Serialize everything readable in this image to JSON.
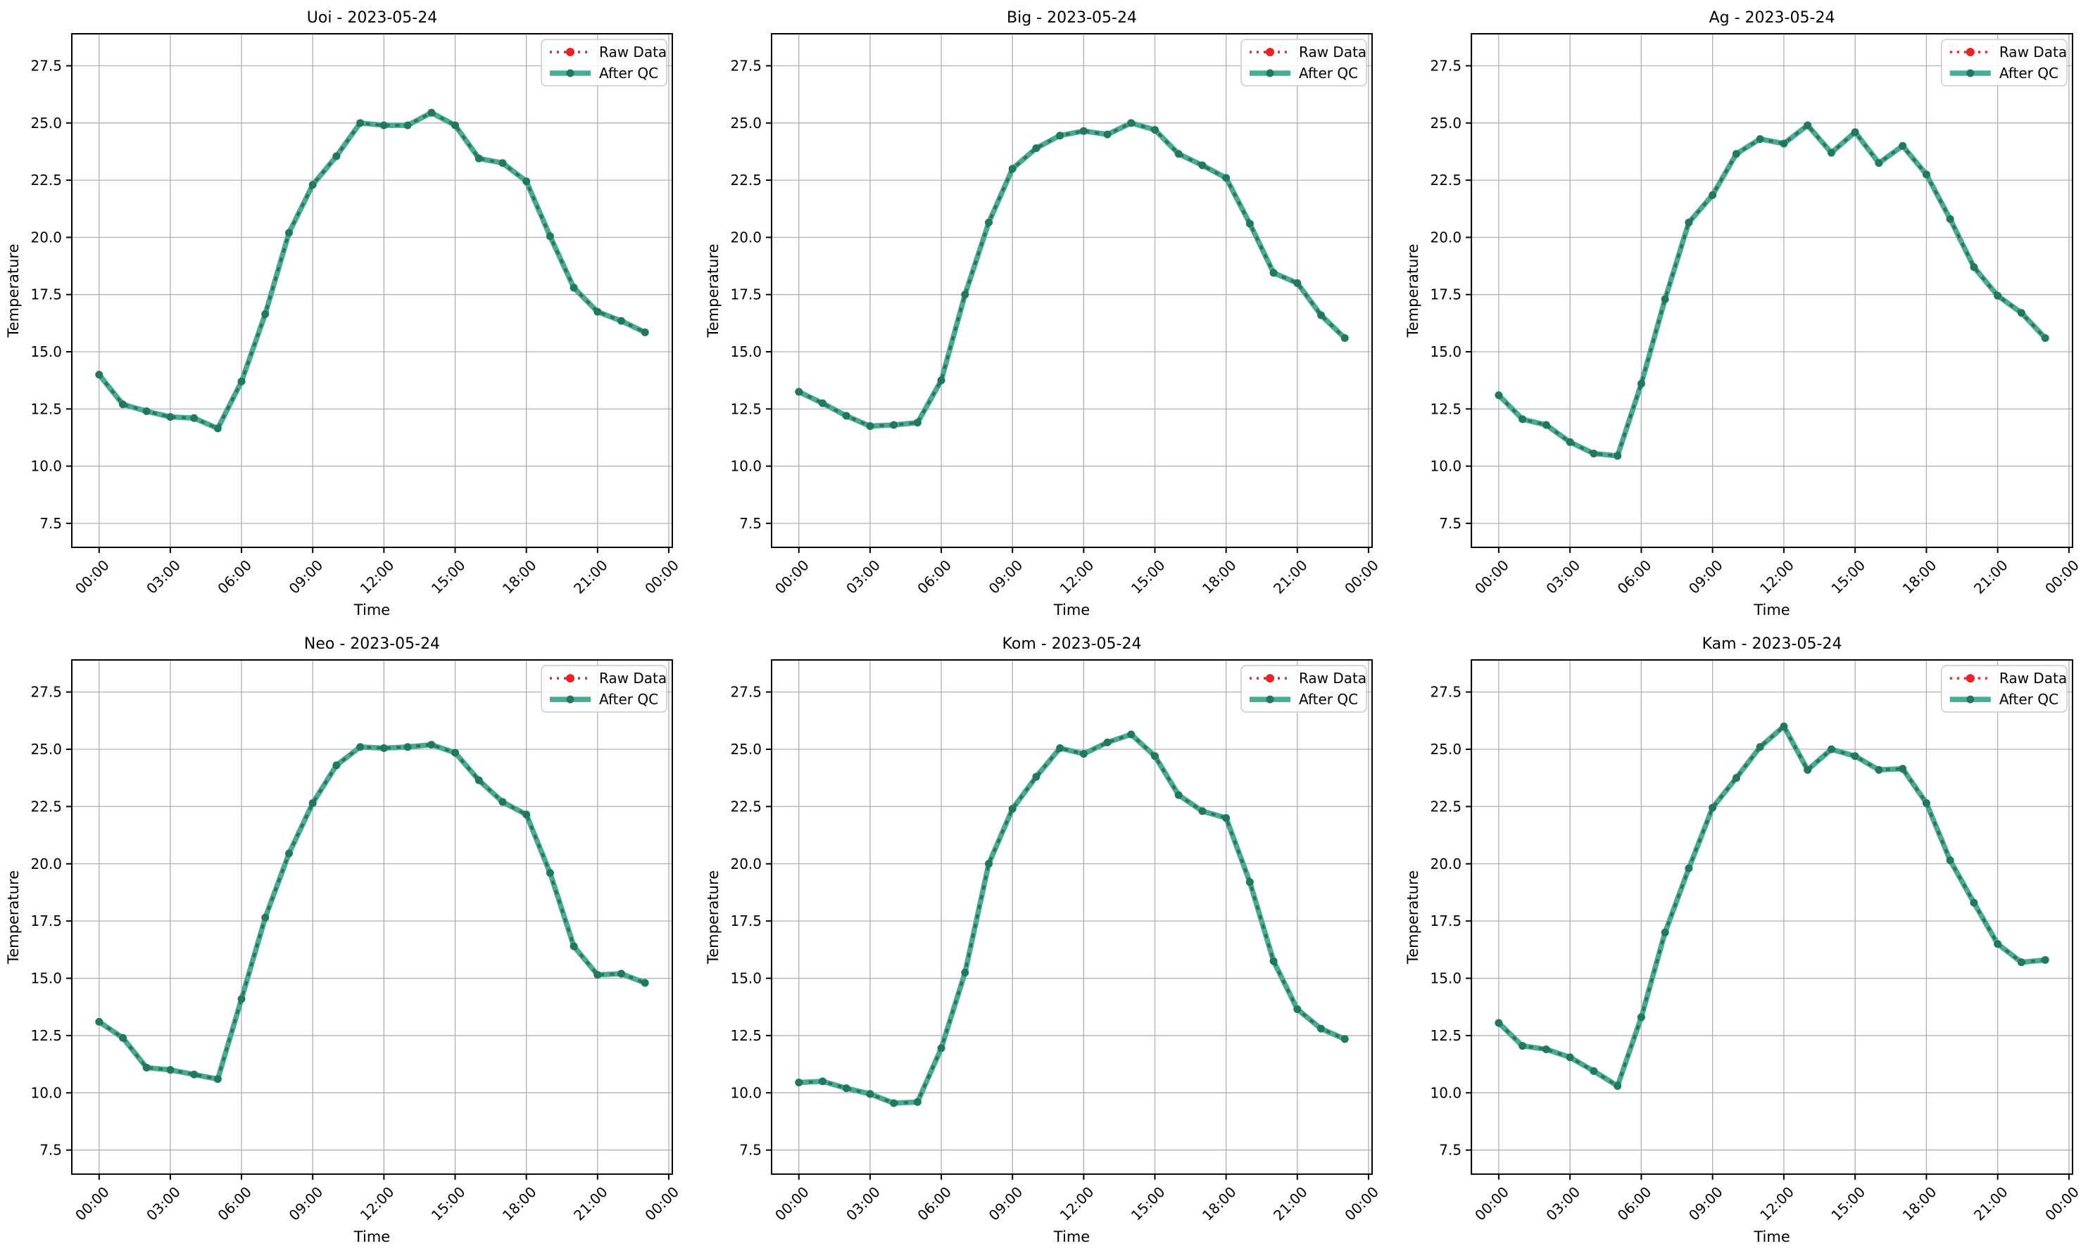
{
  "figure": {
    "date": "2023-05-24",
    "stations": [
      "Uoi",
      "Big",
      "Ag",
      "Neo",
      "Kom",
      "Kam"
    ],
    "layout": {
      "rows": 2,
      "cols": 3
    }
  },
  "style": {
    "background": "#ffffff",
    "grid_color": "#b0b0b0",
    "axis_color": "#000000",
    "text_color": "#000000",
    "qc_line_color": "#45ad92",
    "qc_dash_color": "#366e5e",
    "qc_marker_color": "#20795f",
    "raw_color": "#ed2024",
    "legend_border_color": "#cccccc",
    "legend_bg": "rgba(255,255,255,0.85)"
  },
  "legend": {
    "items": [
      {
        "label": "Raw Data",
        "style": "dotted",
        "color": "#ed2024"
      },
      {
        "label": "After QC",
        "style": "solid",
        "color": "#45ad92"
      }
    ],
    "position": "upper right"
  },
  "axes": {
    "xlabel": "Time",
    "ylabel": "Temperature",
    "grid": true,
    "xlim": [
      -1.15,
      24.15
    ],
    "ylim": [
      6.45,
      28.9
    ],
    "xticks": {
      "positions": [
        0,
        3,
        6,
        9,
        12,
        15,
        18,
        21,
        24
      ],
      "labels": [
        "00:00",
        "03:00",
        "06:00",
        "09:00",
        "12:00",
        "15:00",
        "18:00",
        "21:00",
        "00:00"
      ],
      "rotation": 45
    },
    "yticks": [
      7.5,
      10.0,
      12.5,
      15.0,
      17.5,
      20.0,
      22.5,
      25.0,
      27.5
    ],
    "x_categories": [
      "00:00",
      "01:00",
      "02:00",
      "03:00",
      "04:00",
      "05:00",
      "06:00",
      "07:00",
      "08:00",
      "09:00",
      "10:00",
      "11:00",
      "12:00",
      "13:00",
      "14:00",
      "15:00",
      "16:00",
      "17:00",
      "18:00",
      "19:00",
      "20:00",
      "21:00",
      "22:00",
      "23:00"
    ]
  },
  "chart_data": [
    {
      "type": "line",
      "station": "Uoi",
      "title": "Uoi - 2023-05-24",
      "series": [
        {
          "name": "Raw Data",
          "values": [
            14.0,
            12.7,
            12.4,
            12.15,
            12.1,
            11.65,
            13.7,
            16.65,
            20.2,
            22.3,
            23.55,
            25.0,
            24.9,
            24.9,
            25.45,
            24.9,
            23.45,
            23.25,
            22.45,
            20.05,
            17.8,
            16.75,
            16.35,
            15.85
          ]
        },
        {
          "name": "After QC",
          "values": [
            14.0,
            12.7,
            12.4,
            12.15,
            12.1,
            11.65,
            13.7,
            16.65,
            20.2,
            22.3,
            23.55,
            25.0,
            24.9,
            24.9,
            25.45,
            24.9,
            23.45,
            23.25,
            22.45,
            20.05,
            17.8,
            16.75,
            16.35,
            15.85
          ]
        }
      ]
    },
    {
      "type": "line",
      "station": "Big",
      "title": "Big - 2023-05-24",
      "series": [
        {
          "name": "Raw Data",
          "values": [
            13.25,
            12.75,
            12.2,
            11.75,
            11.8,
            11.9,
            13.75,
            17.5,
            20.65,
            23.0,
            23.9,
            24.45,
            24.65,
            24.5,
            25.0,
            24.7,
            23.65,
            23.15,
            22.6,
            20.6,
            18.45,
            18.0,
            16.6,
            15.6
          ]
        },
        {
          "name": "After QC",
          "values": [
            13.25,
            12.75,
            12.2,
            11.75,
            11.8,
            11.9,
            13.75,
            17.5,
            20.65,
            23.0,
            23.9,
            24.45,
            24.65,
            24.5,
            25.0,
            24.7,
            23.65,
            23.15,
            22.6,
            20.6,
            18.45,
            18.0,
            16.6,
            15.6
          ]
        }
      ]
    },
    {
      "type": "line",
      "station": "Ag",
      "title": "Ag - 2023-05-24",
      "series": [
        {
          "name": "Raw Data",
          "values": [
            13.1,
            12.05,
            11.8,
            11.05,
            10.55,
            10.45,
            13.6,
            17.3,
            20.65,
            21.85,
            23.65,
            24.3,
            24.1,
            24.9,
            23.7,
            24.6,
            23.25,
            24.0,
            22.75,
            20.8,
            18.7,
            17.45,
            16.7,
            15.6
          ]
        },
        {
          "name": "After QC",
          "values": [
            13.1,
            12.05,
            11.8,
            11.05,
            10.55,
            10.45,
            13.6,
            17.3,
            20.65,
            21.85,
            23.65,
            24.3,
            24.1,
            24.9,
            23.7,
            24.6,
            23.25,
            24.0,
            22.75,
            20.8,
            18.7,
            17.45,
            16.7,
            15.6
          ]
        }
      ]
    },
    {
      "type": "line",
      "station": "Neo",
      "title": "Neo - 2023-05-24",
      "series": [
        {
          "name": "Raw Data",
          "values": [
            13.1,
            12.4,
            11.1,
            11.0,
            10.8,
            10.6,
            14.1,
            17.65,
            20.45,
            22.65,
            24.3,
            25.1,
            25.05,
            25.1,
            25.2,
            24.85,
            23.65,
            22.7,
            22.15,
            19.6,
            16.4,
            15.15,
            15.2,
            14.8
          ]
        },
        {
          "name": "After QC",
          "values": [
            13.1,
            12.4,
            11.1,
            11.0,
            10.8,
            10.6,
            14.1,
            17.65,
            20.45,
            22.65,
            24.3,
            25.1,
            25.05,
            25.1,
            25.2,
            24.85,
            23.65,
            22.7,
            22.15,
            19.6,
            16.4,
            15.15,
            15.2,
            14.8
          ]
        }
      ]
    },
    {
      "type": "line",
      "station": "Kom",
      "title": "Kom - 2023-05-24",
      "series": [
        {
          "name": "Raw Data",
          "values": [
            10.45,
            10.5,
            10.2,
            9.95,
            9.55,
            9.6,
            11.95,
            15.25,
            20.0,
            22.4,
            23.8,
            25.05,
            24.8,
            25.3,
            25.65,
            24.7,
            23.0,
            22.3,
            22.0,
            19.2,
            15.75,
            13.65,
            12.8,
            12.35
          ]
        },
        {
          "name": "After QC",
          "values": [
            10.45,
            10.5,
            10.2,
            9.95,
            9.55,
            9.6,
            11.95,
            15.25,
            20.0,
            22.4,
            23.8,
            25.05,
            24.8,
            25.3,
            25.65,
            24.7,
            23.0,
            22.3,
            22.0,
            19.2,
            15.75,
            13.65,
            12.8,
            12.35
          ]
        }
      ]
    },
    {
      "type": "line",
      "station": "Kam",
      "title": "Kam - 2023-05-24",
      "series": [
        {
          "name": "Raw Data",
          "values": [
            13.05,
            12.05,
            11.9,
            11.55,
            10.95,
            10.3,
            13.3,
            17.0,
            19.8,
            22.45,
            23.75,
            25.1,
            26.0,
            24.1,
            25.0,
            24.7,
            24.1,
            24.15,
            22.65,
            20.15,
            18.3,
            16.5,
            15.7,
            15.8
          ]
        },
        {
          "name": "After QC",
          "values": [
            13.05,
            12.05,
            11.9,
            11.55,
            10.95,
            10.3,
            13.3,
            17.0,
            19.8,
            22.45,
            23.75,
            25.1,
            26.0,
            24.1,
            25.0,
            24.7,
            24.1,
            24.15,
            22.65,
            20.15,
            18.3,
            16.5,
            15.7,
            15.8
          ]
        }
      ]
    }
  ]
}
